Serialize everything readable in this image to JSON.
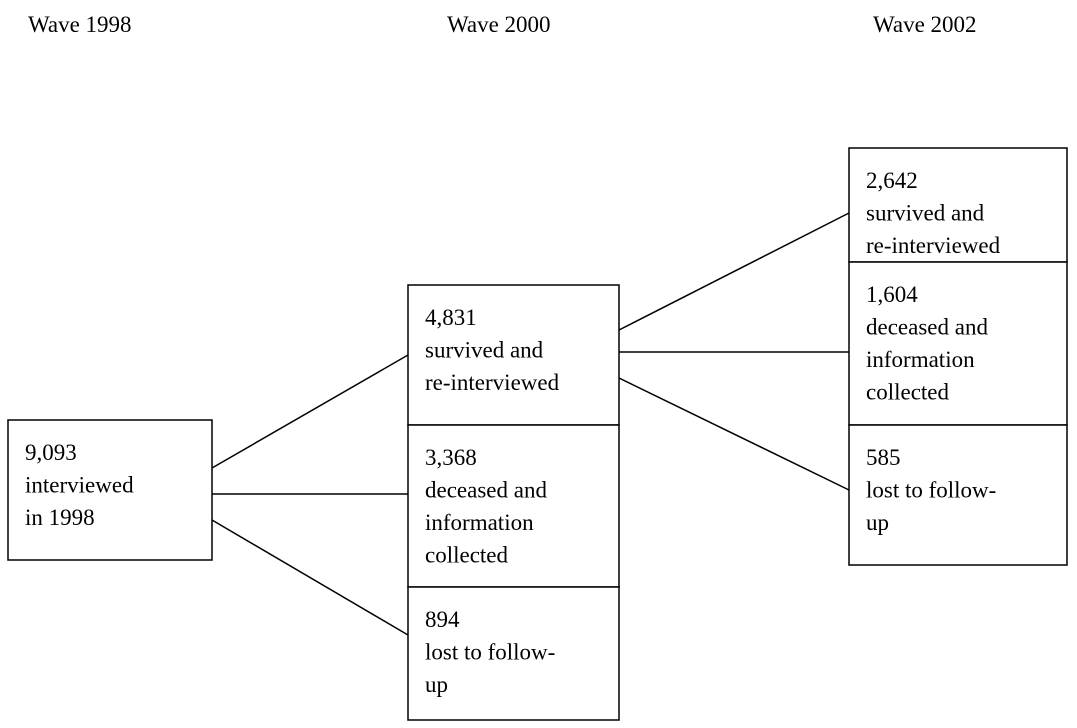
{
  "headers": [
    "Wave 1998",
    "Wave 2000",
    "Wave 2002"
  ],
  "nodes": [
    {
      "number": "9,093",
      "lines": [
        "interviewed",
        "in 1998"
      ]
    },
    {
      "number": "4,831",
      "lines": [
        "survived and",
        "re-interviewed"
      ]
    },
    {
      "number": "3,368",
      "lines": [
        "deceased and",
        "information",
        "collected"
      ]
    },
    {
      "number": "894",
      "lines": [
        "lost to follow-",
        "up"
      ]
    },
    {
      "number": "2,642",
      "lines": [
        "survived and",
        "re-interviewed"
      ]
    },
    {
      "number": "1,604",
      "lines": [
        "deceased and",
        "information",
        "collected"
      ]
    },
    {
      "number": "585",
      "lines": [
        "lost to follow-",
        "up"
      ]
    }
  ]
}
